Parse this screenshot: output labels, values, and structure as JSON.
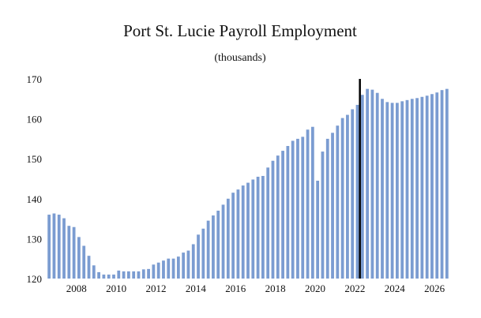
{
  "chart_data": {
    "type": "bar",
    "title": "Port St. Lucie Payroll Employment",
    "subtitle": "(thousands)",
    "xlabel": "",
    "ylabel": "",
    "ylim": [
      120,
      170
    ],
    "y_ticks": [
      "120",
      "130",
      "140",
      "150",
      "160",
      "170"
    ],
    "x_ticks": [
      "2008",
      "2010",
      "2012",
      "2014",
      "2016",
      "2018",
      "2020",
      "2022",
      "2024",
      "2026"
    ],
    "x_start": 2006.5,
    "period": "quarterly",
    "forecast_marker": 2022.25,
    "grid": false,
    "legend": "none",
    "bar_color": "#7b9cd1",
    "marker_color": "#000000",
    "values": [
      136.0,
      136.3,
      136.0,
      135.1,
      133.2,
      132.9,
      130.4,
      128.2,
      125.7,
      123.3,
      121.6,
      121.0,
      121.0,
      121.0,
      122.0,
      121.8,
      121.8,
      121.8,
      121.8,
      122.3,
      122.4,
      123.5,
      124.0,
      124.5,
      125.0,
      125.0,
      125.5,
      126.5,
      127.0,
      128.6,
      131.0,
      132.5,
      134.5,
      135.8,
      137.0,
      138.5,
      140.0,
      141.5,
      142.3,
      143.3,
      144.0,
      144.8,
      145.5,
      145.7,
      147.8,
      149.5,
      150.8,
      152.0,
      153.2,
      154.5,
      155.0,
      155.5,
      157.3,
      158.0,
      144.5,
      151.8,
      155.0,
      156.5,
      158.3,
      160.2,
      161.0,
      162.4,
      163.5,
      166.0,
      167.5,
      167.3,
      166.5,
      165.0,
      164.2,
      164.0,
      164.0,
      164.4,
      164.7,
      165.0,
      165.2,
      165.5,
      165.8,
      166.2,
      166.6,
      167.2,
      167.5
    ]
  }
}
